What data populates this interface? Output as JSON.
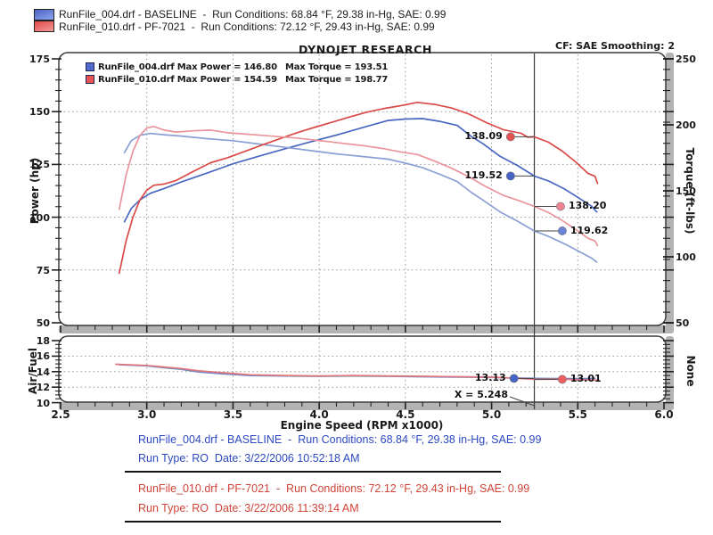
{
  "header": {
    "brand": "DYNOJET RESEARCH",
    "correction": "CF: SAE  Smoothing: 2"
  },
  "top_legend": {
    "items": [
      {
        "text": "RunFile_004.drf - BASELINE  -  Run Conditions: 68.84 °F, 29.38 in-Hg, SAE: 0.99",
        "color_top": "#4a63c8",
        "color_bottom": "#8ea6ea"
      },
      {
        "text": "RunFile_010.drf - PF-7021  -  Run Conditions: 72.12 °F, 29.43 in-Hg, SAE: 0.99",
        "color_top": "#e04848",
        "color_bottom": "#f49a9a"
      }
    ]
  },
  "inner_legend": {
    "items": [
      {
        "swatch": "#4f6bd0",
        "file_power": "RunFile_004.drf Max Power = 146.80",
        "torque": "Max Torque = 193.51"
      },
      {
        "swatch": "#e85454",
        "file_power": "RunFile_010.drf Max Power = 154.59",
        "torque": "Max Torque = 198.77"
      }
    ]
  },
  "axes": {
    "power": {
      "label": "Power (hp)",
      "ticks": [
        175,
        150,
        125,
        100,
        75,
        50
      ],
      "minor_step": 5,
      "range": [
        50,
        175
      ]
    },
    "torque": {
      "label": "Torque (ft-lbs)",
      "ticks": [
        250,
        200,
        150,
        100,
        50
      ],
      "minor_step": 10,
      "range": [
        50,
        250
      ]
    },
    "afr": {
      "label": "Air/Fuel",
      "ticks": [
        18,
        16,
        14,
        12,
        10
      ],
      "minor_step": 0.5,
      "range": [
        10,
        18
      ]
    },
    "afr_right": {
      "label": "None"
    },
    "x": {
      "label": "Engine Speed (RPM x1000)",
      "ticks": [
        2.5,
        3.0,
        3.5,
        4.0,
        4.5,
        5.0,
        5.5,
        6.0
      ],
      "minor_step": 0.1,
      "range": [
        2.5,
        6.0
      ]
    }
  },
  "cursor": {
    "rpm": 5.248,
    "label": "X = 5.248",
    "color": "#3a3a3a"
  },
  "markers": {
    "main": [
      {
        "label": "138.09",
        "rpm_dot": 5.11,
        "value": 138.09,
        "axis": "power",
        "side": "left",
        "dot_color": "#e65252"
      },
      {
        "label": "119.52",
        "rpm_dot": 5.11,
        "value": 119.52,
        "axis": "power",
        "side": "left",
        "dot_color": "#4664c8"
      },
      {
        "label": "138.20",
        "rpm_dot": 5.4,
        "value": 138.2,
        "axis": "torque",
        "side": "right",
        "dot_color": "#ee8490"
      },
      {
        "label": "119.62",
        "rpm_dot": 5.41,
        "value": 119.62,
        "axis": "torque",
        "side": "right",
        "dot_color": "#6a84d8"
      }
    ],
    "afr": [
      {
        "label": "13.13",
        "rpm_dot": 5.13,
        "value": 13.13,
        "axis": "afr",
        "side": "left",
        "dot_color": "#4664c8"
      },
      {
        "label": "13.01",
        "rpm_dot": 5.41,
        "value": 13.01,
        "axis": "afr",
        "side": "right",
        "dot_color": "#ee6060"
      }
    ]
  },
  "footer": {
    "runs": [
      {
        "color": "#2d49c0",
        "line1": "RunFile_004.drf - BASELINE  -  Run Conditions: 68.84 °F, 29.38 in-Hg, SAE: 0.99",
        "line2": "Run Type: RO  Date: 3/22/2006 10:52:18 AM"
      },
      {
        "color": "#d04438",
        "line1": "RunFile_010.drf - PF-7021  -  Run Conditions: 72.12 °F, 29.43 in-Hg, SAE: 0.99",
        "line2": "Run Type: RO  Date: 3/22/2006 11:39:14 AM"
      }
    ]
  },
  "chart_data": [
    {
      "type": "line",
      "title": "DYNOJET RESEARCH",
      "xlabel": "Engine Speed (RPM x1000)",
      "ylabel_left": "Power (hp)",
      "ylabel_right": "Torque (ft-lbs)",
      "xlim": [
        2.5,
        6.0
      ],
      "ylim_left": [
        50,
        175
      ],
      "ylim_right": [
        50,
        250
      ],
      "grid": "dotted",
      "cursor_x": 5.248,
      "series": [
        {
          "name": "RunFile_004.drf Power (hp)",
          "axis": "power",
          "color": "#4a67c2",
          "max": 146.8,
          "points": [
            [
              2.87,
              97.8
            ],
            [
              2.91,
              104.2
            ],
            [
              2.96,
              108.2
            ],
            [
              3.02,
              111.3
            ],
            [
              3.1,
              113.6
            ],
            [
              3.2,
              116.7
            ],
            [
              3.35,
              120.9
            ],
            [
              3.5,
              125.3
            ],
            [
              3.65,
              128.9
            ],
            [
              3.8,
              132.4
            ],
            [
              3.95,
              135.7
            ],
            [
              4.1,
              138.9
            ],
            [
              4.25,
              142.4
            ],
            [
              4.4,
              145.8
            ],
            [
              4.5,
              146.5
            ],
            [
              4.6,
              146.7
            ],
            [
              4.7,
              145.4
            ],
            [
              4.8,
              143.5
            ],
            [
              4.88,
              138.4
            ],
            [
              4.95,
              134.8
            ],
            [
              5.05,
              128.8
            ],
            [
              5.15,
              124.5
            ],
            [
              5.248,
              119.5
            ],
            [
              5.33,
              117.2
            ],
            [
              5.42,
              113.5
            ],
            [
              5.5,
              109.4
            ],
            [
              5.58,
              105.2
            ],
            [
              5.61,
              102.5
            ]
          ]
        },
        {
          "name": "RunFile_004.drf Torque (ft-lbs)",
          "axis": "torque",
          "color": "#8b9fd4",
          "max": 193.51,
          "points": [
            [
              2.87,
              179
            ],
            [
              2.91,
              188
            ],
            [
              2.96,
              192
            ],
            [
              3.02,
              193.5
            ],
            [
              3.1,
              192.5
            ],
            [
              3.2,
              191.5
            ],
            [
              3.35,
              189.5
            ],
            [
              3.5,
              188
            ],
            [
              3.65,
              185.5
            ],
            [
              3.8,
              183
            ],
            [
              3.95,
              180.5
            ],
            [
              4.1,
              178
            ],
            [
              4.25,
              176
            ],
            [
              4.4,
              174
            ],
            [
              4.5,
              171
            ],
            [
              4.6,
              167.5
            ],
            [
              4.7,
              162.5
            ],
            [
              4.8,
              157
            ],
            [
              4.88,
              149
            ],
            [
              4.95,
              143
            ],
            [
              5.05,
              134
            ],
            [
              5.15,
              127
            ],
            [
              5.248,
              119.6
            ],
            [
              5.33,
              115.5
            ],
            [
              5.42,
              110
            ],
            [
              5.5,
              104.5
            ],
            [
              5.58,
              99
            ],
            [
              5.61,
              96
            ]
          ]
        },
        {
          "name": "RunFile_010.drf Power (hp)",
          "axis": "power",
          "color": "#da4a48",
          "max": 154.59,
          "points": [
            [
              2.84,
              73.5
            ],
            [
              2.88,
              88.8
            ],
            [
              2.92,
              100.1
            ],
            [
              2.96,
              108.2
            ],
            [
              3.0,
              112.8
            ],
            [
              3.04,
              115.1
            ],
            [
              3.1,
              115.7
            ],
            [
              3.17,
              117.4
            ],
            [
              3.27,
              121.7
            ],
            [
              3.37,
              125.8
            ],
            [
              3.47,
              128.2
            ],
            [
              3.57,
              131.2
            ],
            [
              3.67,
              134.2
            ],
            [
              3.77,
              137.1
            ],
            [
              3.87,
              140.0
            ],
            [
              3.97,
              142.5
            ],
            [
              4.07,
              144.9
            ],
            [
              4.17,
              147.3
            ],
            [
              4.27,
              149.6
            ],
            [
              4.37,
              151.4
            ],
            [
              4.47,
              152.8
            ],
            [
              4.57,
              154.4
            ],
            [
              4.67,
              153.4
            ],
            [
              4.77,
              151.7
            ],
            [
              4.87,
              148.8
            ],
            [
              4.97,
              144.8
            ],
            [
              5.07,
              141.4
            ],
            [
              5.17,
              139.8
            ],
            [
              5.21,
              137.9
            ],
            [
              5.248,
              138.1
            ],
            [
              5.33,
              135.5
            ],
            [
              5.41,
              131.3
            ],
            [
              5.49,
              126.0
            ],
            [
              5.56,
              120.7
            ],
            [
              5.6,
              119.4
            ],
            [
              5.615,
              116.0
            ]
          ]
        },
        {
          "name": "RunFile_010.drf Torque (ft-lbs)",
          "axis": "torque",
          "color": "#ea959c",
          "max": 198.77,
          "points": [
            [
              2.84,
              136
            ],
            [
              2.88,
              162
            ],
            [
              2.92,
              180
            ],
            [
              2.96,
              192
            ],
            [
              3.0,
              197.5
            ],
            [
              3.04,
              198.8
            ],
            [
              3.1,
              196
            ],
            [
              3.17,
              194.5
            ],
            [
              3.27,
              195.5
            ],
            [
              3.37,
              196
            ],
            [
              3.47,
              194
            ],
            [
              3.57,
              193
            ],
            [
              3.67,
              192
            ],
            [
              3.77,
              191
            ],
            [
              3.87,
              190
            ],
            [
              3.97,
              188.5
            ],
            [
              4.07,
              187
            ],
            [
              4.17,
              185.5
            ],
            [
              4.27,
              184
            ],
            [
              4.37,
              182
            ],
            [
              4.47,
              179.5
            ],
            [
              4.57,
              177.5
            ],
            [
              4.67,
              172.5
            ],
            [
              4.77,
              167
            ],
            [
              4.87,
              160.5
            ],
            [
              4.97,
              153
            ],
            [
              5.07,
              146.5
            ],
            [
              5.17,
              142
            ],
            [
              5.248,
              138.2
            ],
            [
              5.33,
              133.5
            ],
            [
              5.41,
              127.5
            ],
            [
              5.49,
              120.5
            ],
            [
              5.56,
              114
            ],
            [
              5.6,
              112
            ],
            [
              5.615,
              108.5
            ]
          ]
        }
      ]
    },
    {
      "type": "line",
      "ylabel_left": "Air/Fuel",
      "ylabel_right": "None",
      "xlim": [
        2.5,
        6.0
      ],
      "ylim_left": [
        10,
        18
      ],
      "grid": "dotted",
      "cursor_x": 5.248,
      "series": [
        {
          "name": "RunFile_004.drf Air/Fuel",
          "axis": "afr",
          "color": "#6c86c8",
          "cursor_value": 13.13,
          "points": [
            [
              2.84,
              14.9
            ],
            [
              3.0,
              14.75
            ],
            [
              3.1,
              14.5
            ],
            [
              3.2,
              14.3
            ],
            [
              3.3,
              13.95
            ],
            [
              3.45,
              13.7
            ],
            [
              3.6,
              13.5
            ],
            [
              3.8,
              13.45
            ],
            [
              4.0,
              13.4
            ],
            [
              4.2,
              13.45
            ],
            [
              4.4,
              13.4
            ],
            [
              4.6,
              13.35
            ],
            [
              4.8,
              13.3
            ],
            [
              5.0,
              13.25
            ],
            [
              5.1,
              13.2
            ],
            [
              5.248,
              13.13
            ],
            [
              5.4,
              13.1
            ],
            [
              5.55,
              13.1
            ],
            [
              5.6,
              13.15
            ]
          ]
        },
        {
          "name": "RunFile_010.drf Air/Fuel",
          "axis": "afr",
          "color": "#e0787e",
          "cursor_value": 13.01,
          "points": [
            [
              2.82,
              14.95
            ],
            [
              3.0,
              14.8
            ],
            [
              3.1,
              14.6
            ],
            [
              3.2,
              14.4
            ],
            [
              3.3,
              14.1
            ],
            [
              3.45,
              13.85
            ],
            [
              3.6,
              13.6
            ],
            [
              3.8,
              13.5
            ],
            [
              4.0,
              13.45
            ],
            [
              4.2,
              13.5
            ],
            [
              4.4,
              13.45
            ],
            [
              4.6,
              13.4
            ],
            [
              4.8,
              13.35
            ],
            [
              5.0,
              13.3
            ],
            [
              5.1,
              13.2
            ],
            [
              5.248,
              13.01
            ],
            [
              5.4,
              13.05
            ],
            [
              5.5,
              12.95
            ],
            [
              5.62,
              12.9
            ]
          ]
        }
      ]
    }
  ]
}
